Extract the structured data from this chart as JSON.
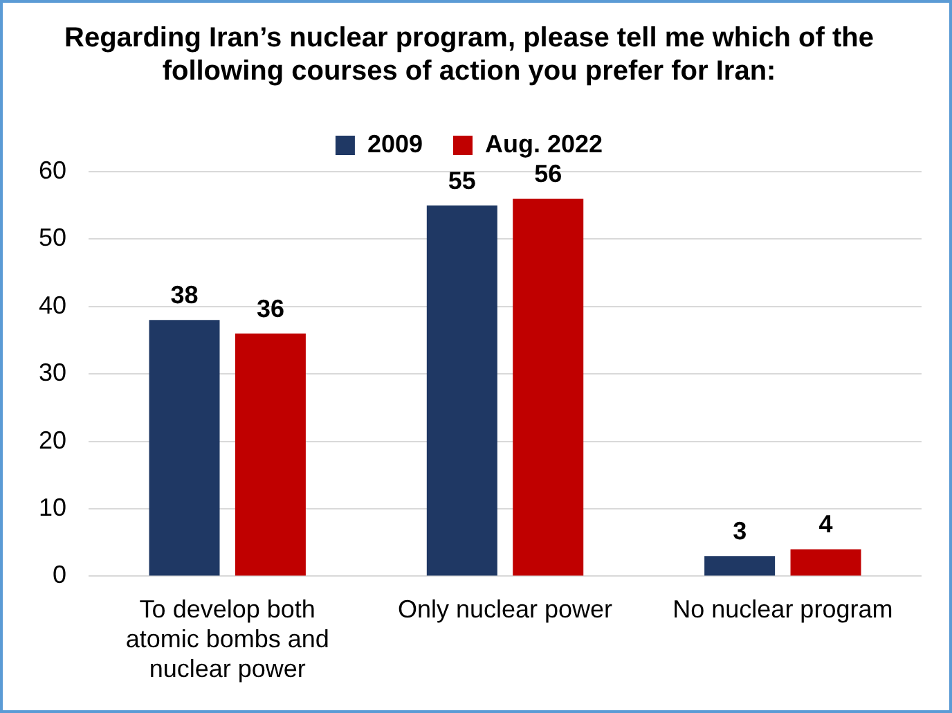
{
  "chart_data": {
    "type": "bar",
    "title": "Regarding Iran’s nuclear program, please tell me which of the following courses of action you prefer for Iran:",
    "categories": [
      "To develop both atomic bombs and nuclear power",
      "Only nuclear power",
      "No nuclear program"
    ],
    "series": [
      {
        "name": "2009",
        "color": "#1f3864",
        "values": [
          38,
          55,
          3
        ]
      },
      {
        "name": "Aug. 2022",
        "color": "#c00000",
        "values": [
          36,
          56,
          4
        ]
      }
    ],
    "ylim": [
      0,
      60
    ],
    "yticks": [
      0,
      10,
      20,
      30,
      40,
      50,
      60
    ],
    "grid": "y",
    "legend": "top",
    "data_labels": true
  }
}
